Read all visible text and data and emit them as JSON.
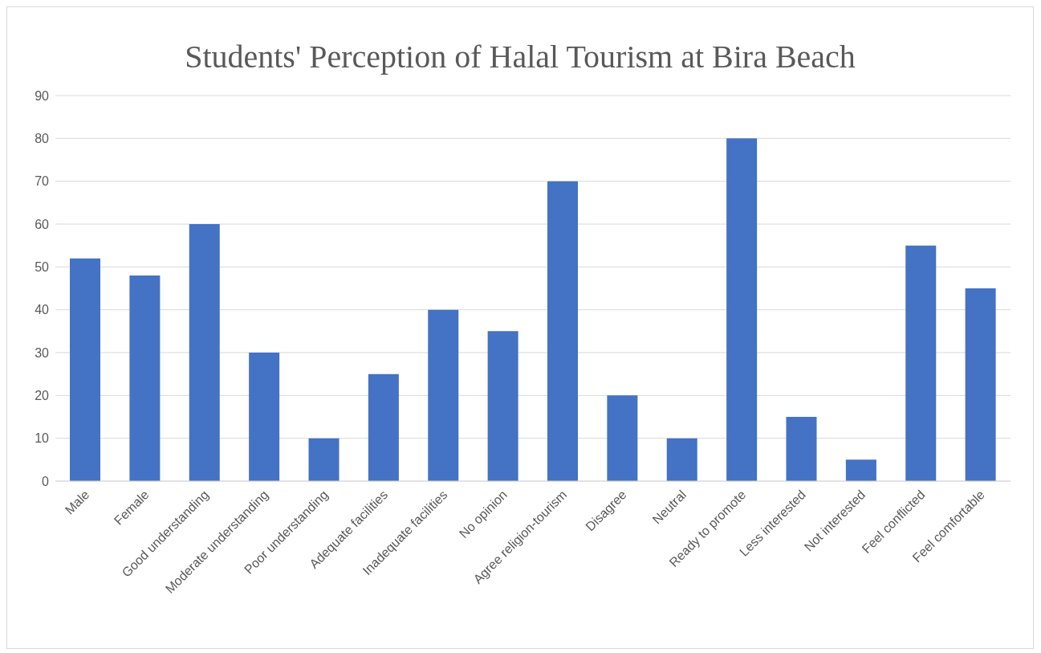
{
  "chart_data": {
    "type": "bar",
    "title": "Students' Perception of Halal Tourism at Bira Beach",
    "categories": [
      "Male",
      "Female",
      "Good understanding",
      "Moderate understanding",
      "Poor understanding",
      "Adequate facilities",
      "Inadequate facilities",
      "No opinion",
      "Agree religion-tourism",
      "Disagree",
      "Neutral",
      "Ready to promote",
      "Less interested",
      "Not interested",
      "Feel conflicted",
      "Feel comfortable"
    ],
    "values": [
      52,
      48,
      60,
      30,
      10,
      25,
      40,
      35,
      70,
      20,
      10,
      80,
      15,
      5,
      55,
      45
    ],
    "color": "#4472c4",
    "ylim": [
      0,
      90
    ],
    "yticks": [
      0,
      10,
      20,
      30,
      40,
      50,
      60,
      70,
      80,
      90
    ],
    "grid": "y"
  }
}
